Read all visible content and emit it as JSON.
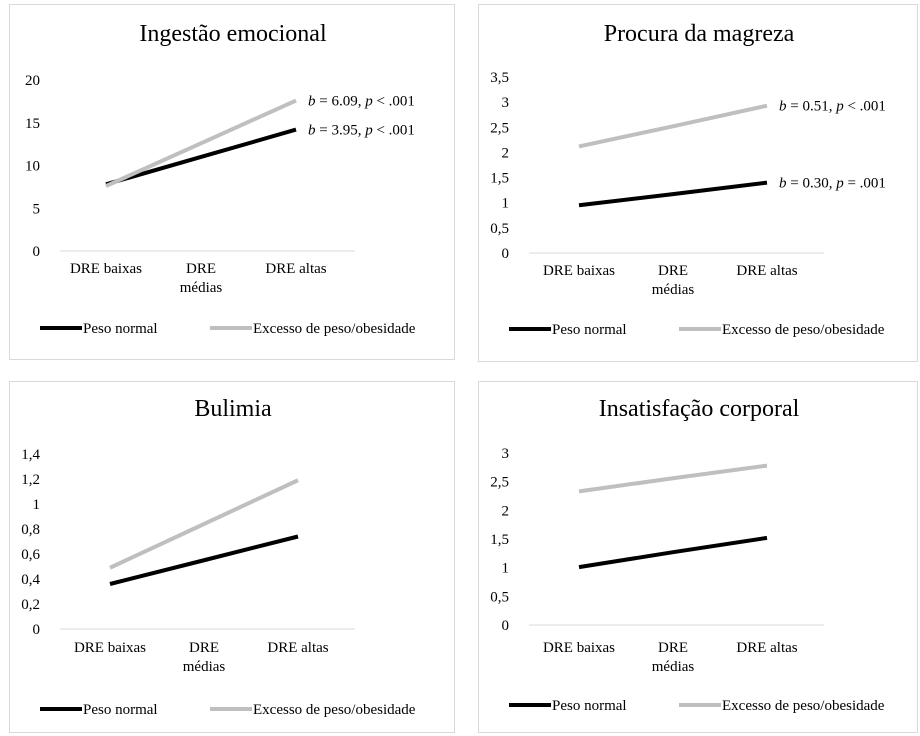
{
  "chart_data": [
    {
      "type": "line",
      "title": "Ingestão emocional",
      "categories": [
        [
          "DRE baixas"
        ],
        [
          "DRE",
          "médias"
        ],
        [
          "DRE altas"
        ]
      ],
      "ylim": [
        0,
        20
      ],
      "yticks": [
        "0",
        "5",
        "10",
        "15",
        "20"
      ],
      "grid": false,
      "legend_position": "bottom",
      "series": [
        {
          "name": "Peso normal",
          "color": "#000000",
          "values": [
            7.8,
            11.0,
            14.2
          ]
        },
        {
          "name": "Excesso de peso/obesidade",
          "color": "#bfbfbf",
          "values": [
            7.6,
            12.6,
            17.6
          ]
        }
      ],
      "annotations": [
        {
          "series": 1,
          "b": "6.09",
          "p_op": "<",
          "p": ".001"
        },
        {
          "series": 0,
          "b": "3.95",
          "p_op": "<",
          "p": ".001"
        }
      ]
    },
    {
      "type": "line",
      "title": "Procura da magreza",
      "categories": [
        [
          "DRE baixas"
        ],
        [
          "DRE",
          "médias"
        ],
        [
          "DRE altas"
        ]
      ],
      "ylim": [
        0,
        3.5
      ],
      "yticks": [
        "0",
        "0,5",
        "1",
        "1,5",
        "2",
        "2,5",
        "3",
        "3,5"
      ],
      "grid": false,
      "legend_position": "bottom",
      "series": [
        {
          "name": "Peso normal",
          "color": "#000000",
          "values": [
            0.95,
            1.17,
            1.4
          ]
        },
        {
          "name": "Excesso de peso/obesidade",
          "color": "#bfbfbf",
          "values": [
            2.12,
            2.52,
            2.93
          ]
        }
      ],
      "annotations": [
        {
          "series": 1,
          "b": "0.51",
          "p_op": "<",
          "p": ".001"
        },
        {
          "series": 0,
          "b": "0.30",
          "p_op": "=",
          "p": ".001"
        }
      ]
    },
    {
      "type": "line",
      "title": "Bulimia",
      "categories": [
        [
          "DRE baixas"
        ],
        [
          "DRE",
          "médias"
        ],
        [
          "DRE altas"
        ]
      ],
      "ylim": [
        0,
        1.4
      ],
      "yticks": [
        "0",
        "0,2",
        "0,4",
        "0,6",
        "0,8",
        "1",
        "1,2",
        "1,4"
      ],
      "grid": false,
      "legend_position": "bottom",
      "series": [
        {
          "name": "Peso normal",
          "color": "#000000",
          "values": [
            0.36,
            0.55,
            0.74
          ]
        },
        {
          "name": "Excesso de peso/obesidade",
          "color": "#bfbfbf",
          "values": [
            0.49,
            0.84,
            1.19
          ]
        }
      ],
      "annotations": []
    },
    {
      "type": "line",
      "title": "Insatisfação corporal",
      "categories": [
        [
          "DRE baixas"
        ],
        [
          "DRE",
          "médias"
        ],
        [
          "DRE altas"
        ]
      ],
      "ylim": [
        0,
        3
      ],
      "yticks": [
        "0",
        "0,5",
        "1",
        "1,5",
        "2",
        "2,5",
        "3"
      ],
      "grid": false,
      "legend_position": "bottom",
      "series": [
        {
          "name": "Peso normal",
          "color": "#000000",
          "values": [
            1.01,
            1.27,
            1.52
          ]
        },
        {
          "name": "Excesso de peso/obesidade",
          "color": "#bfbfbf",
          "values": [
            2.33,
            2.56,
            2.78
          ]
        }
      ],
      "annotations": []
    }
  ]
}
